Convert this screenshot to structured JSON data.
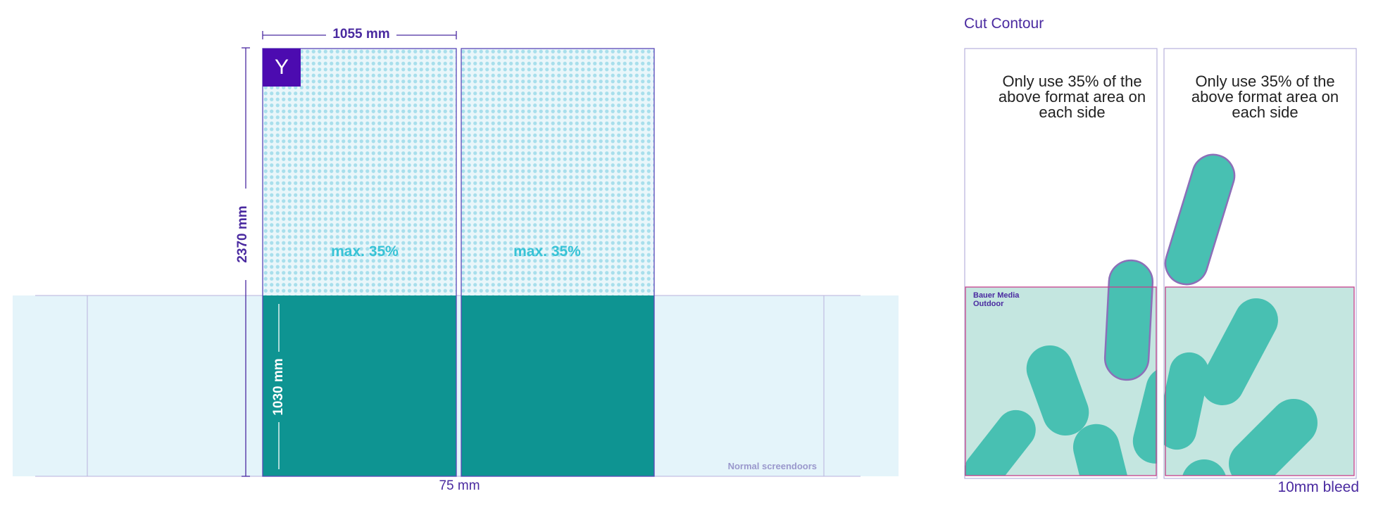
{
  "left": {
    "width_label": "1055 mm",
    "height_label": "2370 mm",
    "screen_height_label": "1030 mm",
    "gap_label": "75 mm",
    "max_label_1": "max. 35%",
    "max_label_2": "max. 35%",
    "badge_letter": "Y",
    "screendoors_label": "Normal screendoors"
  },
  "right": {
    "title": "Cut Contour",
    "note_1": "Only use 35% of the above format area on each side",
    "note_2": "Only use 35% of the above format area on each side",
    "logo_text": "Bauer Media Outdoor",
    "bleed_label": "10mm bleed"
  },
  "colors": {
    "accent_purple": "#4a2aa0",
    "teal_dark": "#0e9492",
    "teal_pill": "#48c0b2",
    "light_blue": "#e4f4fa",
    "dot_blue": "#a8dfec",
    "bleed_pink": "#c8408c"
  }
}
